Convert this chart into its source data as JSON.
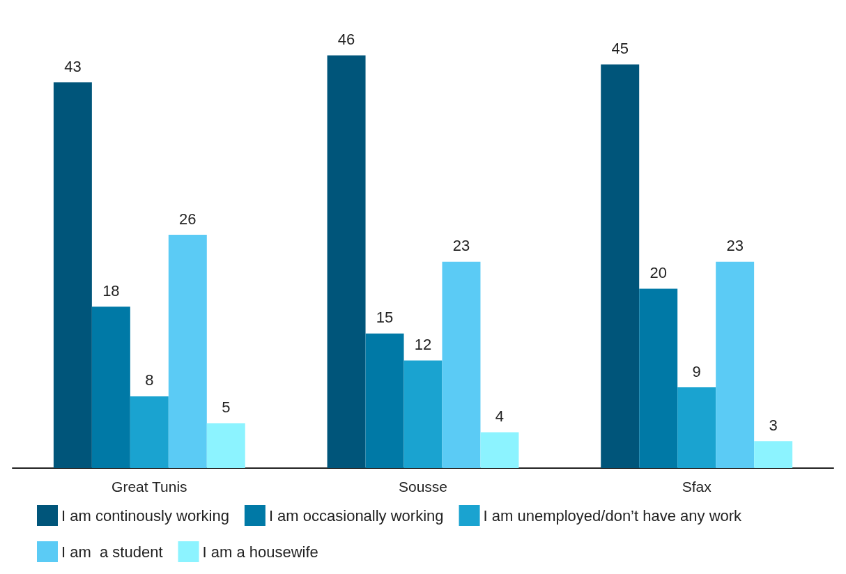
{
  "chart_data": {
    "type": "bar",
    "categories": [
      "Great Tunis",
      "Sousse",
      "Sfax"
    ],
    "series": [
      {
        "name": "I am continously working",
        "color": "#00557a",
        "values": [
          43,
          46,
          45
        ]
      },
      {
        "name": "I am occasionally working",
        "color": "#0079a6",
        "values": [
          18,
          15,
          20
        ]
      },
      {
        "name": "I am unemployed/don’t have any work",
        "color": "#1aa3d0",
        "values": [
          8,
          12,
          9
        ]
      },
      {
        "name": "I am  a student",
        "color": "#5bcbf5",
        "values": [
          26,
          23,
          23
        ]
      },
      {
        "name": "I am a housewife",
        "color": "#8cf3ff",
        "values": [
          5,
          4,
          3
        ]
      }
    ],
    "data_labels": true,
    "legend": "bottom"
  }
}
